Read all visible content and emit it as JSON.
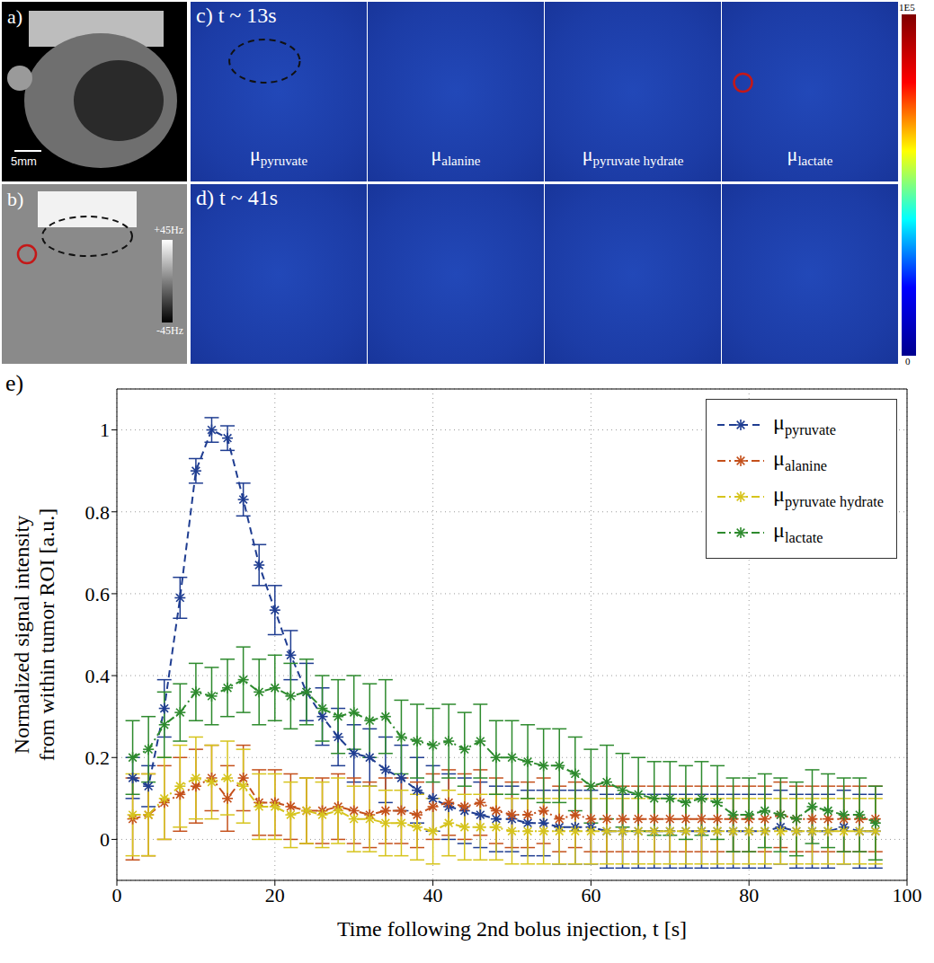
{
  "images": {
    "a": {
      "letter": "a)",
      "scale_bar": "5mm"
    },
    "b": {
      "letter": "b)",
      "colorbar_ticks": [
        "+45Hz",
        "-45Hz"
      ]
    },
    "c": {
      "letter": "c) t ~ 13s"
    },
    "d": {
      "letter": "d) t ~ 41s"
    },
    "maps": [
      "μpyruvate",
      "μalanine",
      "μpyruvate hydrate",
      "μlactate"
    ],
    "colorbar_ticks": [
      "1E5",
      "0"
    ],
    "e": {
      "letter": "e)"
    }
  },
  "chart_data": {
    "type": "line",
    "xlabel": "Time following 2nd bolus injection, t [s]",
    "ylabel": [
      "Normalized signal intensity",
      "from within tumor ROI [a.u.]"
    ],
    "x": [
      2,
      4,
      6,
      8,
      10,
      12,
      14,
      16,
      18,
      20,
      22,
      24,
      26,
      28,
      30,
      32,
      34,
      36,
      38,
      40,
      42,
      44,
      46,
      48,
      50,
      52,
      54,
      56,
      58,
      60,
      62,
      64,
      66,
      68,
      70,
      72,
      74,
      76,
      78,
      80,
      82,
      84,
      86,
      88,
      90,
      92,
      94,
      96
    ],
    "xlim": [
      0,
      100
    ],
    "xticks": [
      0,
      20,
      40,
      60,
      80,
      100
    ],
    "ylim": [
      -0.1,
      1.1
    ],
    "yticks": [
      0,
      0.2,
      0.4,
      0.6,
      0.8,
      1
    ],
    "grid": true,
    "legend": "upper right",
    "series": [
      {
        "name": "μpyruvate",
        "color": "#1f3d91",
        "line_style": "dashed",
        "marker": "asterisk",
        "values": [
          0.15,
          0.13,
          0.32,
          0.59,
          0.9,
          1.0,
          0.98,
          0.83,
          0.67,
          0.56,
          0.45,
          0.36,
          0.3,
          0.25,
          0.21,
          0.2,
          0.17,
          0.15,
          0.12,
          0.1,
          0.08,
          0.07,
          0.06,
          0.05,
          0.05,
          0.04,
          0.04,
          0.03,
          0.03,
          0.03,
          0.02,
          0.02,
          0.02,
          0.02,
          0.02,
          0.02,
          0.02,
          0.02,
          0.02,
          0.02,
          0.02,
          0.03,
          0.02,
          0.02,
          0.02,
          0.03,
          0.02,
          0.02
        ],
        "errors": [
          0.05,
          0.05,
          0.07,
          0.05,
          0.03,
          0.03,
          0.03,
          0.04,
          0.05,
          0.06,
          0.06,
          0.07,
          0.07,
          0.07,
          0.07,
          0.07,
          0.08,
          0.08,
          0.08,
          0.08,
          0.08,
          0.08,
          0.08,
          0.08,
          0.08,
          0.08,
          0.08,
          0.09,
          0.09,
          0.09,
          0.09,
          0.09,
          0.09,
          0.09,
          0.09,
          0.09,
          0.09,
          0.09,
          0.09,
          0.09,
          0.09,
          0.09,
          0.09,
          0.09,
          0.09,
          0.09,
          0.09,
          0.09
        ]
      },
      {
        "name": "μalanine",
        "color": "#c4501b",
        "line_style": "dashdot",
        "marker": "asterisk",
        "values": [
          0.05,
          0.06,
          0.09,
          0.11,
          0.13,
          0.15,
          0.1,
          0.15,
          0.09,
          0.09,
          0.08,
          0.07,
          0.07,
          0.08,
          0.07,
          0.06,
          0.07,
          0.07,
          0.06,
          0.08,
          0.09,
          0.08,
          0.09,
          0.07,
          0.06,
          0.06,
          0.07,
          0.05,
          0.06,
          0.05,
          0.05,
          0.05,
          0.05,
          0.05,
          0.05,
          0.05,
          0.05,
          0.05,
          0.05,
          0.05,
          0.05,
          0.06,
          0.05,
          0.05,
          0.05,
          0.05,
          0.05,
          0.05
        ],
        "errors": [
          0.1,
          0.1,
          0.09,
          0.09,
          0.09,
          0.08,
          0.08,
          0.08,
          0.08,
          0.08,
          0.08,
          0.08,
          0.08,
          0.08,
          0.08,
          0.08,
          0.08,
          0.08,
          0.08,
          0.08,
          0.08,
          0.08,
          0.08,
          0.08,
          0.08,
          0.08,
          0.08,
          0.08,
          0.08,
          0.08,
          0.08,
          0.08,
          0.08,
          0.08,
          0.08,
          0.08,
          0.08,
          0.08,
          0.08,
          0.08,
          0.08,
          0.08,
          0.08,
          0.08,
          0.08,
          0.08,
          0.08,
          0.08
        ]
      },
      {
        "name": "μpyruvate hydrate",
        "color": "#d6c41c",
        "line_style": "dashdot",
        "marker": "asterisk",
        "values": [
          0.06,
          0.06,
          0.1,
          0.13,
          0.15,
          0.14,
          0.15,
          0.13,
          0.08,
          0.08,
          0.06,
          0.07,
          0.06,
          0.07,
          0.05,
          0.05,
          0.04,
          0.04,
          0.03,
          0.02,
          0.04,
          0.03,
          0.03,
          0.03,
          0.02,
          0.02,
          0.02,
          0.02,
          0.02,
          0.02,
          0.02,
          0.02,
          0.02,
          0.02,
          0.02,
          0.02,
          0.02,
          0.02,
          0.02,
          0.02,
          0.02,
          0.02,
          0.02,
          0.02,
          0.02,
          0.02,
          0.02,
          0.02
        ],
        "errors": [
          0.1,
          0.1,
          0.1,
          0.1,
          0.1,
          0.09,
          0.09,
          0.09,
          0.08,
          0.08,
          0.08,
          0.08,
          0.08,
          0.08,
          0.08,
          0.08,
          0.08,
          0.08,
          0.08,
          0.08,
          0.08,
          0.08,
          0.08,
          0.08,
          0.08,
          0.08,
          0.08,
          0.08,
          0.08,
          0.08,
          0.08,
          0.08,
          0.08,
          0.08,
          0.08,
          0.08,
          0.08,
          0.08,
          0.08,
          0.08,
          0.08,
          0.08,
          0.08,
          0.08,
          0.08,
          0.08,
          0.08,
          0.08
        ]
      },
      {
        "name": "μlactate",
        "color": "#2d8a2d",
        "line_style": "dashdot",
        "marker": "asterisk",
        "values": [
          0.2,
          0.22,
          0.28,
          0.31,
          0.36,
          0.35,
          0.37,
          0.39,
          0.36,
          0.37,
          0.35,
          0.36,
          0.32,
          0.3,
          0.31,
          0.29,
          0.3,
          0.25,
          0.24,
          0.23,
          0.24,
          0.22,
          0.24,
          0.2,
          0.2,
          0.19,
          0.18,
          0.18,
          0.16,
          0.13,
          0.14,
          0.12,
          0.11,
          0.1,
          0.1,
          0.09,
          0.1,
          0.09,
          0.06,
          0.06,
          0.07,
          0.06,
          0.05,
          0.08,
          0.07,
          0.06,
          0.06,
          0.04
        ],
        "errors": [
          0.09,
          0.08,
          0.08,
          0.07,
          0.07,
          0.07,
          0.07,
          0.08,
          0.08,
          0.08,
          0.08,
          0.08,
          0.08,
          0.09,
          0.09,
          0.09,
          0.09,
          0.09,
          0.09,
          0.09,
          0.09,
          0.09,
          0.09,
          0.09,
          0.09,
          0.09,
          0.09,
          0.09,
          0.09,
          0.09,
          0.09,
          0.09,
          0.09,
          0.09,
          0.09,
          0.09,
          0.09,
          0.09,
          0.09,
          0.09,
          0.09,
          0.09,
          0.09,
          0.09,
          0.09,
          0.09,
          0.09,
          0.09
        ]
      }
    ]
  }
}
